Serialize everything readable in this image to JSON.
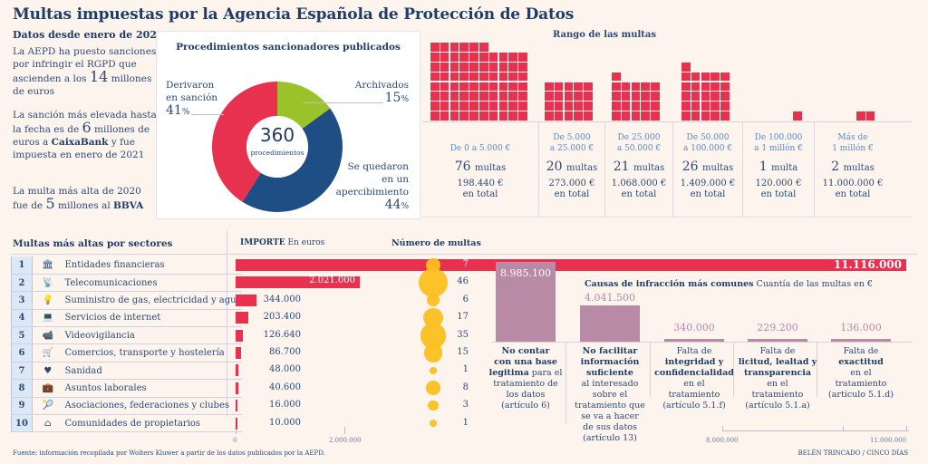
{
  "title": "Multas impuestas por la Agencia Española de Protección de Datos",
  "intro": {
    "subtitle": "Datos desde enero de 2020",
    "p1_a": "La AEPD ha puesto sanciones por infringir el RGPD que ascienden a los",
    "p1_big": "14",
    "p1_b": "millones de euros",
    "p2_a": "La sanción más elevada hasta la fecha es de",
    "p2_big": "6",
    "p2_b": "millones de euros a",
    "p2_company": "CaixaBank",
    "p2_c": "y fue impuesta en enero de 2021",
    "p3_a": "La multa más alta de 2020 fue de",
    "p3_big": "5",
    "p3_b": "millones al",
    "p3_company": "BBVA"
  },
  "colors": {
    "red": "#e8304f",
    "navy": "#1f4e85",
    "green": "#9cc22a",
    "yellow": "#fcbf1e",
    "mauve": "#b98aa5",
    "text": "#2b4a78",
    "light_blue": "#5b8ac9"
  },
  "chart_data": [
    {
      "type": "pie",
      "title": "Procedimientos sancionadores publicados",
      "center_value": "360",
      "center_label": "procedimientos",
      "slices": [
        {
          "label": "Archivados",
          "value": 15,
          "pct_text": "15",
          "color": "#9cc22a"
        },
        {
          "label": "Se quedaron en un apercibimiento",
          "value": 44,
          "pct_text": "44",
          "color": "#1f4e85"
        },
        {
          "label": "Derivaron en sanción",
          "value": 41,
          "pct_text": "41",
          "color": "#e8304f"
        }
      ],
      "labels": {
        "derivaron_1": "Derivaron",
        "derivaron_2": "en sanción",
        "archivados": "Archivados",
        "apercib_1": "Se quedaron",
        "apercib_2": "en un",
        "apercib_3": "apercibimiento",
        "pct_sign": "%"
      }
    },
    {
      "type": "bar",
      "title": "Rango de las multas",
      "style": "waffle",
      "categories": [
        {
          "label_1": "De 0 a 5.000 €",
          "label_2": "",
          "count": 76,
          "count_unit": "multas",
          "total": "198.440 €",
          "total_unit": "en total",
          "cols": 10
        },
        {
          "label_1": "De 5.000",
          "label_2": "a 25.000 €",
          "count": 20,
          "count_unit": "multas",
          "total": "273.000 €",
          "total_unit": "en total",
          "cols": 5
        },
        {
          "label_1": "De 25.000",
          "label_2": "a 50.000 €",
          "count": 21,
          "count_unit": "multas",
          "total": "1.068.000 €",
          "total_unit": "en total",
          "cols": 5
        },
        {
          "label_1": "De 50.000",
          "label_2": "a 100.000 €",
          "count": 26,
          "count_unit": "multas",
          "total": "1.409.000 €",
          "total_unit": "en total",
          "cols": 5
        },
        {
          "label_1": "De 100.000",
          "label_2": "a 1 millón €",
          "count": 1,
          "count_unit": "multa",
          "total": "120.000 €",
          "total_unit": "en total",
          "cols": 5
        },
        {
          "label_1": "Más de",
          "label_2": "1 millón €",
          "count": 2,
          "count_unit": "multas",
          "total": "11.000.000 €",
          "total_unit": "en total",
          "cols": 5
        }
      ]
    },
    {
      "type": "bar",
      "title": "Multas más altas por sectores",
      "importe_label_bold": "IMPORTE",
      "importe_label": "En euros",
      "count_title": "Número de multas",
      "xlim": [
        0,
        11116000
      ],
      "ticks": [
        {
          "value": 0,
          "label": "0"
        },
        {
          "value": 2000000,
          "label": "2.000.000"
        }
      ],
      "rows": [
        {
          "rank": "1",
          "icon": "bank-icon",
          "glyph": "🏛",
          "name": "Entidades financieras",
          "amount": 11116000,
          "amount_text": "11.116.000",
          "count": 7
        },
        {
          "rank": "2",
          "icon": "satellite-dish-icon",
          "glyph": "📡",
          "name": "Telecomunicaciones",
          "amount": 2021000,
          "amount_text": "2.021.000",
          "count": 46
        },
        {
          "rank": "3",
          "icon": "utilities-icon",
          "glyph": "💡",
          "name": "Suministro de gas, electricidad y agua",
          "amount": 344000,
          "amount_text": "344.000",
          "count": 6
        },
        {
          "rank": "4",
          "icon": "laptop-at-icon",
          "glyph": "💻",
          "name": "Servicios de internet",
          "amount": 203400,
          "amount_text": "203.400",
          "count": 17
        },
        {
          "rank": "5",
          "icon": "security-camera-icon",
          "glyph": "📹",
          "name": "Videovigilancia",
          "amount": 126640,
          "amount_text": "126.640",
          "count": 35
        },
        {
          "rank": "6",
          "icon": "cart-truck-cutlery-icon",
          "glyph": "🛒",
          "name": "Comercios, transporte y hostelería",
          "amount": 86700,
          "amount_text": "86.700",
          "count": 15
        },
        {
          "rank": "7",
          "icon": "heart-icon",
          "glyph": "♥",
          "name": "Sanidad",
          "amount": 48000,
          "amount_text": "48.000",
          "count": 1
        },
        {
          "rank": "8",
          "icon": "briefcase-icon",
          "glyph": "💼",
          "name": "Asuntos laborales",
          "amount": 40600,
          "amount_text": "40.600",
          "count": 8
        },
        {
          "rank": "9",
          "icon": "tennis-racket-icon",
          "glyph": "🎾",
          "name": "Asociaciones, federaciones y clubes",
          "amount": 16000,
          "amount_text": "16.000",
          "count": 3
        },
        {
          "rank": "10",
          "icon": "house-icon",
          "glyph": "⌂",
          "name": "Comunidades de propietarios",
          "amount": 10000,
          "amount_text": "10.000",
          "count": 1
        }
      ]
    },
    {
      "type": "bar",
      "title_bold": "Causas de infracción más comunes",
      "title": "Cuantía de las multas en €",
      "ylim": [
        0,
        9000000
      ],
      "ticks": [
        {
          "label": "8.000.000"
        },
        {
          "label": "11.000.000"
        }
      ],
      "categories": [
        {
          "value": 8985100,
          "value_text": "8.985.100",
          "lines": [
            [
              "No contar",
              true
            ],
            [
              "con una base",
              true
            ],
            [
              "legitima",
              true,
              " para el"
            ],
            [
              "tratamiento de",
              false
            ],
            [
              "los datos",
              false
            ],
            [
              "(artículo 6)",
              false
            ]
          ]
        },
        {
          "value": 4041500,
          "value_text": "4.041.500",
          "lines": [
            [
              "No facilitar",
              true
            ],
            [
              "información",
              true
            ],
            [
              "suficiente",
              true
            ],
            [
              "al interesado",
              false
            ],
            [
              "sobre el",
              false
            ],
            [
              "tratamiento que",
              false
            ],
            [
              "se va a hacer",
              false
            ],
            [
              "de sus datos",
              false
            ],
            [
              "(artículo 13)",
              false
            ]
          ]
        },
        {
          "value": 340000,
          "value_text": "340.000",
          "lines": [
            [
              "Falta de",
              false
            ],
            [
              "integridad y",
              true
            ],
            [
              "confidencialidad",
              true
            ],
            [
              "en el",
              false
            ],
            [
              "tratamiento",
              false
            ],
            [
              "(artículo 5.1.f)",
              false
            ]
          ]
        },
        {
          "value": 229200,
          "value_text": "229.200",
          "lines": [
            [
              "Falta de",
              false
            ],
            [
              "licitud, lealtad y",
              true
            ],
            [
              "transparencia",
              true
            ],
            [
              "en el",
              false
            ],
            [
              "tratamiento",
              false
            ],
            [
              "(artículo 5.1.a)",
              false
            ]
          ]
        },
        {
          "value": 136000,
          "value_text": "136.000",
          "lines": [
            [
              "Falta de",
              false
            ],
            [
              "exactitud",
              true
            ],
            [
              "en el",
              false
            ],
            [
              "tratamiento",
              false
            ],
            [
              "(artículo 5.1.d)",
              false
            ]
          ]
        }
      ]
    }
  ],
  "footer": {
    "source": "Fuente: información recopilada por Wolters Kluwer a partir de los datos publicados por la AEPD.",
    "credit": "BELÉN TRINCADO / CINCO DÍAS"
  }
}
